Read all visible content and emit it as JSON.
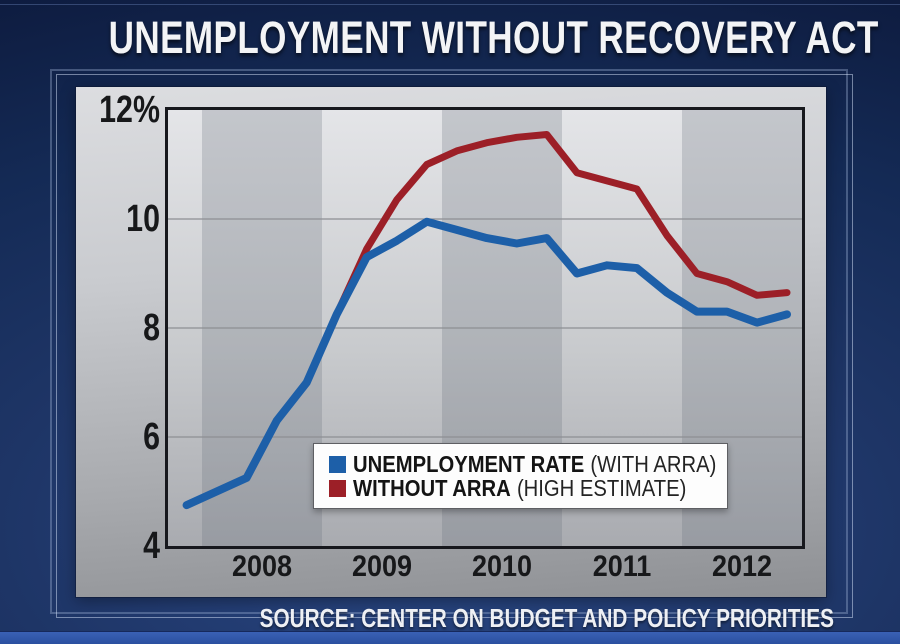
{
  "title": "UNEMPLOYMENT WITHOUT RECOVERY ACT",
  "source_line": "SOURCE: CENTER ON BUDGET AND POLICY PRIORITIES",
  "colors": {
    "with_arra_line": "#1d5fa8",
    "without_arra_line": "#9c1f27",
    "background_navy": "#1e3566",
    "bottom_band_blue": "#2f57ac",
    "panel_gray_top": "#dcdde0",
    "panel_gray_bottom": "#8e9094"
  },
  "legend": {
    "items": [
      {
        "name_bold": "UNEMPLOYMENT RATE",
        "name_note": "(WITH ARRA)",
        "swatch_color": "#1d5fa8"
      },
      {
        "name_bold": "WITHOUT ARRA",
        "name_note": "(HIGH ESTIMATE)",
        "swatch_color": "#9c1f27"
      }
    ]
  },
  "chart_data": {
    "type": "line",
    "title": "UNEMPLOYMENT WITHOUT RECOVERY ACT",
    "xlabel": "",
    "ylabel": "",
    "xlim": [
      2007.72,
      2013.0
    ],
    "ylim": [
      4,
      12
    ],
    "grid": "horizontal",
    "grid_values": [
      10,
      8,
      6
    ],
    "y_ticks": [
      {
        "label": "12%",
        "value": 12
      },
      {
        "label": "10",
        "value": 10
      },
      {
        "label": "8",
        "value": 8
      },
      {
        "label": "6",
        "value": 6
      },
      {
        "label": "4",
        "value": 4
      }
    ],
    "x_ticks": [
      {
        "label": "2008",
        "value": 2008.5
      },
      {
        "label": "2009",
        "value": 2009.5
      },
      {
        "label": "2010",
        "value": 2010.5
      },
      {
        "label": "2011",
        "value": 2011.5
      },
      {
        "label": "2012",
        "value": 2012.5
      }
    ],
    "dark_band_years": [
      2008,
      2010,
      2012
    ],
    "legend_position": "inside-bottom-center",
    "series": [
      {
        "name": "WITHOUT ARRA (HIGH ESTIMATE)",
        "color": "#9c1f27",
        "stroke_width": 7,
        "points": [
          [
            2009.125,
            8.25
          ],
          [
            2009.375,
            9.45
          ],
          [
            2009.625,
            10.35
          ],
          [
            2009.875,
            11.0
          ],
          [
            2010.125,
            11.25
          ],
          [
            2010.375,
            11.4
          ],
          [
            2010.625,
            11.5
          ],
          [
            2010.875,
            11.55
          ],
          [
            2011.125,
            10.85
          ],
          [
            2011.375,
            10.7
          ],
          [
            2011.625,
            10.55
          ],
          [
            2011.875,
            9.7
          ],
          [
            2012.125,
            9.0
          ],
          [
            2012.375,
            8.85
          ],
          [
            2012.625,
            8.6
          ],
          [
            2012.875,
            8.65
          ]
        ]
      },
      {
        "name": "UNEMPLOYMENT RATE (WITH ARRA)",
        "color": "#1d5fa8",
        "stroke_width": 8,
        "points": [
          [
            2007.875,
            4.75
          ],
          [
            2008.125,
            5.0
          ],
          [
            2008.375,
            5.25
          ],
          [
            2008.625,
            6.3
          ],
          [
            2008.875,
            7.0
          ],
          [
            2009.125,
            8.25
          ],
          [
            2009.375,
            9.3
          ],
          [
            2009.625,
            9.6
          ],
          [
            2009.875,
            9.95
          ],
          [
            2010.125,
            9.8
          ],
          [
            2010.375,
            9.65
          ],
          [
            2010.625,
            9.55
          ],
          [
            2010.875,
            9.65
          ],
          [
            2011.125,
            9.0
          ],
          [
            2011.375,
            9.15
          ],
          [
            2011.625,
            9.1
          ],
          [
            2011.875,
            8.65
          ],
          [
            2012.125,
            8.3
          ],
          [
            2012.375,
            8.3
          ],
          [
            2012.625,
            8.1
          ],
          [
            2012.875,
            8.25
          ]
        ]
      }
    ]
  }
}
